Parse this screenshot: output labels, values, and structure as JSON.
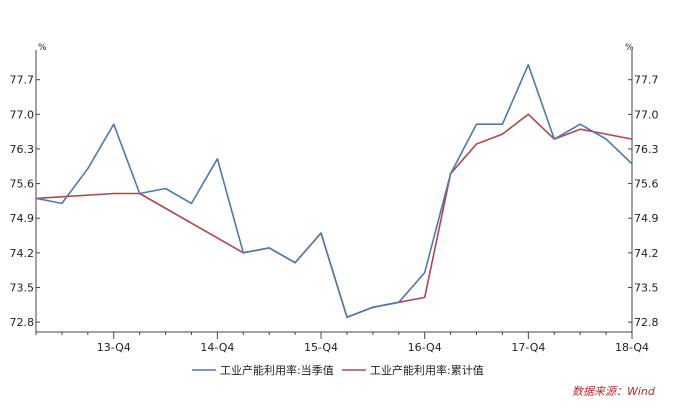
{
  "chart_data": {
    "type": "line",
    "y_unit_left": "%",
    "y_unit_right": "%",
    "ylim": [
      72.6,
      78.3
    ],
    "y_ticks": [
      "72.8",
      "73.5",
      "74.2",
      "74.9",
      "75.6",
      "76.3",
      "77.0",
      "77.7"
    ],
    "x_tick_labels": [
      {
        "label": "13-Q4",
        "index": 3
      },
      {
        "label": "14-Q4",
        "index": 7
      },
      {
        "label": "15-Q4",
        "index": 11
      },
      {
        "label": "16-Q4",
        "index": 15
      },
      {
        "label": "17-Q4",
        "index": 19
      },
      {
        "label": "18-Q4",
        "index": 23
      }
    ],
    "series": [
      {
        "name": "工业产能利用率:当季值",
        "color": "#4a7ab0",
        "values": [
          75.3,
          75.2,
          75.9,
          76.8,
          75.4,
          75.5,
          75.2,
          76.1,
          74.2,
          74.3,
          74.0,
          74.6,
          72.9,
          73.1,
          73.2,
          73.8,
          75.8,
          76.8,
          76.8,
          78.0,
          76.5,
          76.8,
          76.5,
          76.0
        ]
      },
      {
        "name": "工业产能利用率:累计值",
        "color": "#b5454a",
        "values": [
          75.3,
          null,
          null,
          75.4,
          75.4,
          null,
          null,
          null,
          74.2,
          74.3,
          74.0,
          74.6,
          72.9,
          73.1,
          73.2,
          73.3,
          75.8,
          76.4,
          76.6,
          77.0,
          76.5,
          76.7,
          76.6,
          76.5
        ]
      }
    ],
    "legend_position": "bottom",
    "grid": false
  },
  "source_text": "数据来源：Wind"
}
